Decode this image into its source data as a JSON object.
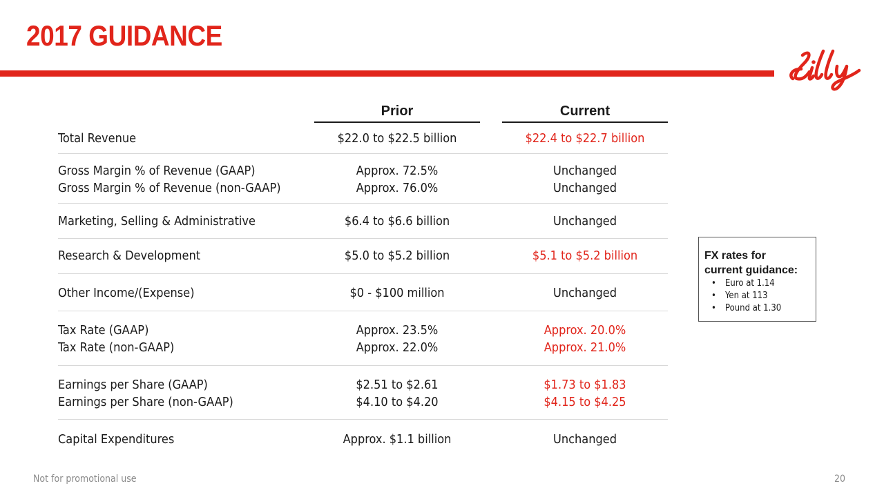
{
  "header": {
    "title": "2017 GUIDANCE",
    "logo_text": "Lilly",
    "accent_color": "#e1251b"
  },
  "table": {
    "headers": {
      "prior": "Prior",
      "current": "Current"
    },
    "rows": [
      {
        "lines": [
          {
            "label": "Total Revenue",
            "prior": "$22.0 to $22.5 billion",
            "current": "$22.4 to $22.7 billion",
            "current_red": true
          }
        ]
      },
      {
        "lines": [
          {
            "label": "Gross Margin % of Revenue (GAAP)",
            "prior": "Approx. 72.5%",
            "current": "Unchanged",
            "current_red": false
          },
          {
            "label": "Gross Margin % of Revenue (non-GAAP)",
            "prior": "Approx. 76.0%",
            "current": "Unchanged",
            "current_red": false
          }
        ]
      },
      {
        "lines": [
          {
            "label": "Marketing, Selling & Administrative",
            "prior": "$6.4 to $6.6 billion",
            "current": "Unchanged",
            "current_red": false
          }
        ]
      },
      {
        "lines": [
          {
            "label": "Research & Development",
            "prior": "$5.0 to $5.2 billion",
            "current": "$5.1 to $5.2 billion",
            "current_red": true
          }
        ]
      },
      {
        "lines": [
          {
            "label": "Other Income/(Expense)",
            "prior": "$0 - $100 million",
            "current": "Unchanged",
            "current_red": false
          }
        ]
      },
      {
        "lines": [
          {
            "label": "Tax Rate (GAAP)",
            "prior": "Approx. 23.5%",
            "current": "Approx. 20.0%",
            "current_red": true
          },
          {
            "label": "Tax Rate (non-GAAP)",
            "prior": "Approx. 22.0%",
            "current": "Approx. 21.0%",
            "current_red": true
          }
        ]
      },
      {
        "lines": [
          {
            "label": "Earnings per Share (GAAP)",
            "prior": "$2.51 to $2.61",
            "current": "$1.73 to $1.83",
            "current_red": true
          },
          {
            "label": "Earnings per Share (non-GAAP)",
            "prior": "$4.10 to $4.20",
            "current": "$4.15 to $4.25",
            "current_red": true
          }
        ]
      },
      {
        "lines": [
          {
            "label": "Capital Expenditures",
            "prior": "Approx. $1.1 billion",
            "current": "Unchanged",
            "current_red": false
          }
        ]
      }
    ]
  },
  "fx_box": {
    "title_line1": "FX rates for",
    "title_line2": "current guidance:",
    "items": [
      "Euro at 1.14",
      "Yen at 113",
      "Pound at 1.30"
    ]
  },
  "footer": {
    "disclaimer": "Not for promotional use",
    "page_number": "20"
  }
}
